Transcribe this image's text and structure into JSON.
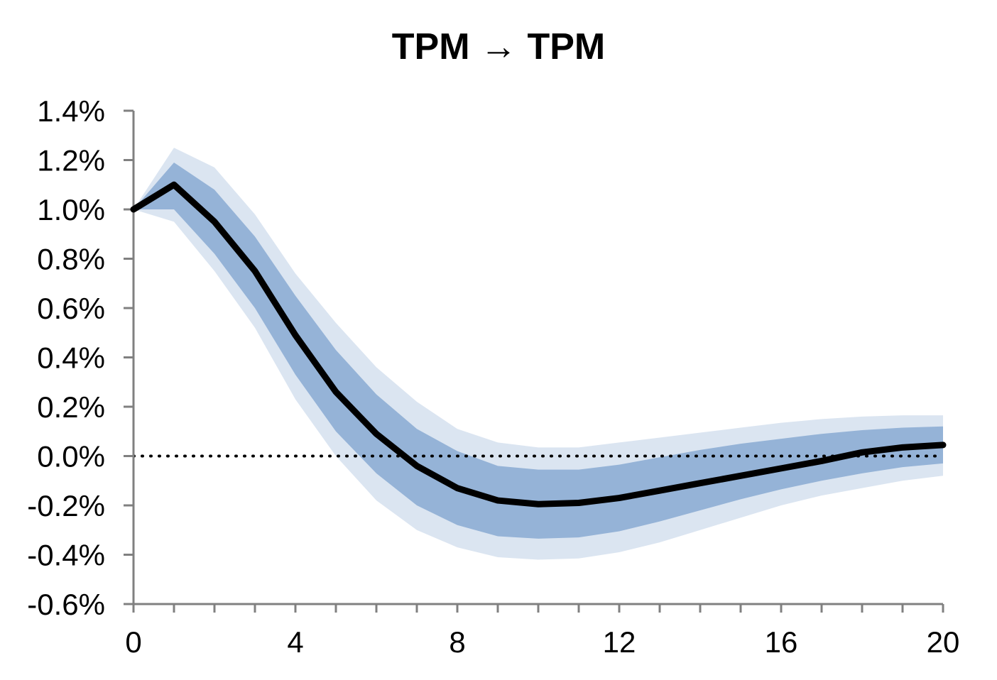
{
  "chart_data": {
    "type": "line",
    "title": "TPM → TPM",
    "xlabel": "",
    "ylabel": "",
    "x": [
      0,
      1,
      2,
      3,
      4,
      5,
      6,
      7,
      8,
      9,
      10,
      11,
      12,
      13,
      14,
      15,
      16,
      17,
      18,
      19,
      20
    ],
    "xlim": [
      0,
      20
    ],
    "ylim": [
      -0.6,
      1.4
    ],
    "x_ticks": [
      0,
      4,
      8,
      12,
      16,
      20
    ],
    "x_tick_labels": [
      "0",
      "4",
      "8",
      "12",
      "16",
      "20"
    ],
    "y_ticks": [
      1.4,
      1.2,
      1.0,
      0.8,
      0.6,
      0.4,
      0.2,
      0.0,
      -0.2,
      -0.4,
      -0.6
    ],
    "y_tick_labels": [
      "1.4%",
      "1.2%",
      "1.0%",
      "0.8%",
      "0.6%",
      "0.4%",
      "0.2%",
      "0.0%",
      "-0.2%",
      "-0.4%",
      "-0.6%"
    ],
    "grid": false,
    "zero_line": "dotted",
    "series": [
      {
        "values": [
          1.0,
          1.1,
          0.95,
          0.75,
          0.49,
          0.26,
          0.09,
          -0.04,
          -0.13,
          -0.18,
          -0.195,
          -0.19,
          -0.17,
          -0.14,
          -0.11,
          -0.08,
          -0.05,
          -0.02,
          0.015,
          0.035,
          0.045
        ],
        "color": "#000000"
      }
    ],
    "bands": [
      {
        "lower": [
          1.0,
          0.95,
          0.75,
          0.52,
          0.23,
          0.0,
          -0.18,
          -0.3,
          -0.37,
          -0.41,
          -0.42,
          -0.415,
          -0.39,
          -0.35,
          -0.3,
          -0.25,
          -0.2,
          -0.16,
          -0.13,
          -0.1,
          -0.08
        ],
        "upper": [
          1.0,
          1.25,
          1.17,
          0.98,
          0.74,
          0.54,
          0.36,
          0.22,
          0.11,
          0.055,
          0.035,
          0.035,
          0.055,
          0.075,
          0.095,
          0.115,
          0.135,
          0.15,
          0.16,
          0.165,
          0.165
        ],
        "color": "#dbe5f1"
      },
      {
        "lower": [
          1.0,
          1.0,
          0.82,
          0.6,
          0.33,
          0.1,
          -0.07,
          -0.2,
          -0.28,
          -0.325,
          -0.335,
          -0.33,
          -0.305,
          -0.265,
          -0.22,
          -0.175,
          -0.135,
          -0.1,
          -0.07,
          -0.045,
          -0.03
        ],
        "upper": [
          1.0,
          1.19,
          1.08,
          0.89,
          0.65,
          0.43,
          0.25,
          0.11,
          0.02,
          -0.04,
          -0.055,
          -0.055,
          -0.035,
          -0.005,
          0.025,
          0.05,
          0.07,
          0.09,
          0.105,
          0.115,
          0.12
        ],
        "color": "#95b3d7"
      }
    ]
  }
}
